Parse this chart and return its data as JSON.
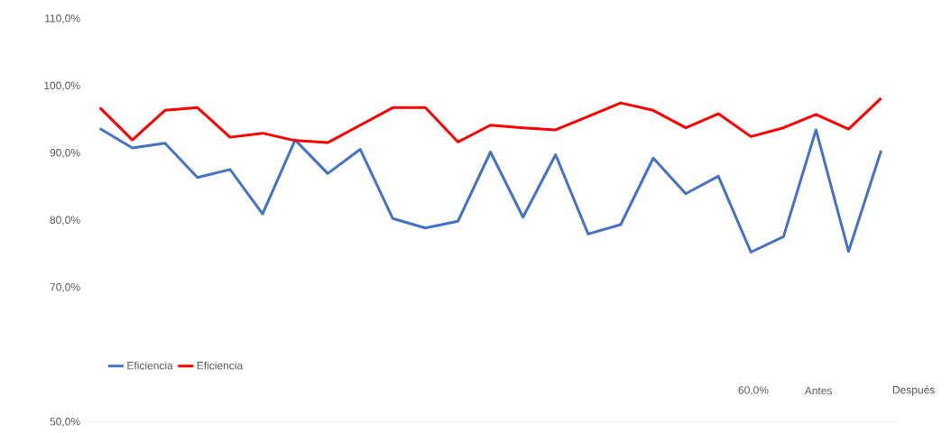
{
  "chart_data": {
    "type": "line",
    "categories": [
      null,
      null,
      null,
      null,
      null,
      null,
      null,
      null,
      null,
      null,
      null,
      null,
      null,
      null,
      null,
      null,
      null,
      null,
      null,
      null,
      null,
      null,
      null,
      null,
      null
    ],
    "series": [
      {
        "name": "Eficiencia",
        "color": "#4472c4",
        "values": [
          93.7,
          90.8,
          91.5,
          86.4,
          87.6,
          81.0,
          92.0,
          87.0,
          90.6,
          80.3,
          78.9,
          79.9,
          90.2,
          80.5,
          89.8,
          78.0,
          79.4,
          89.3,
          84.0,
          86.6,
          75.3,
          77.6,
          93.5,
          75.4,
          90.4
        ]
      },
      {
        "name": "Eficiencia",
        "color": "#ff0000",
        "values": [
          96.8,
          92.0,
          96.4,
          96.8,
          92.4,
          93.0,
          91.9,
          91.6,
          94.2,
          96.8,
          96.8,
          91.7,
          94.2,
          93.8,
          93.5,
          95.5,
          97.5,
          96.4,
          93.8,
          95.9,
          92.5,
          93.8,
          95.8,
          93.6,
          98.2
        ]
      }
    ],
    "ylim": [
      50,
      110
    ],
    "yticks": [
      {
        "value": 50,
        "label": "50,0%"
      },
      {
        "value": 70,
        "label": "70,0%"
      },
      {
        "value": 80,
        "label": "80,0%"
      },
      {
        "value": 90,
        "label": "90,0%"
      },
      {
        "value": 100,
        "label": "100,0%"
      },
      {
        "value": 110,
        "label": "110,0%"
      }
    ],
    "annotations": [
      "60,0%",
      "Antes",
      "Después"
    ],
    "legend": "bottom left",
    "marker": "none",
    "line_style": "solid"
  }
}
